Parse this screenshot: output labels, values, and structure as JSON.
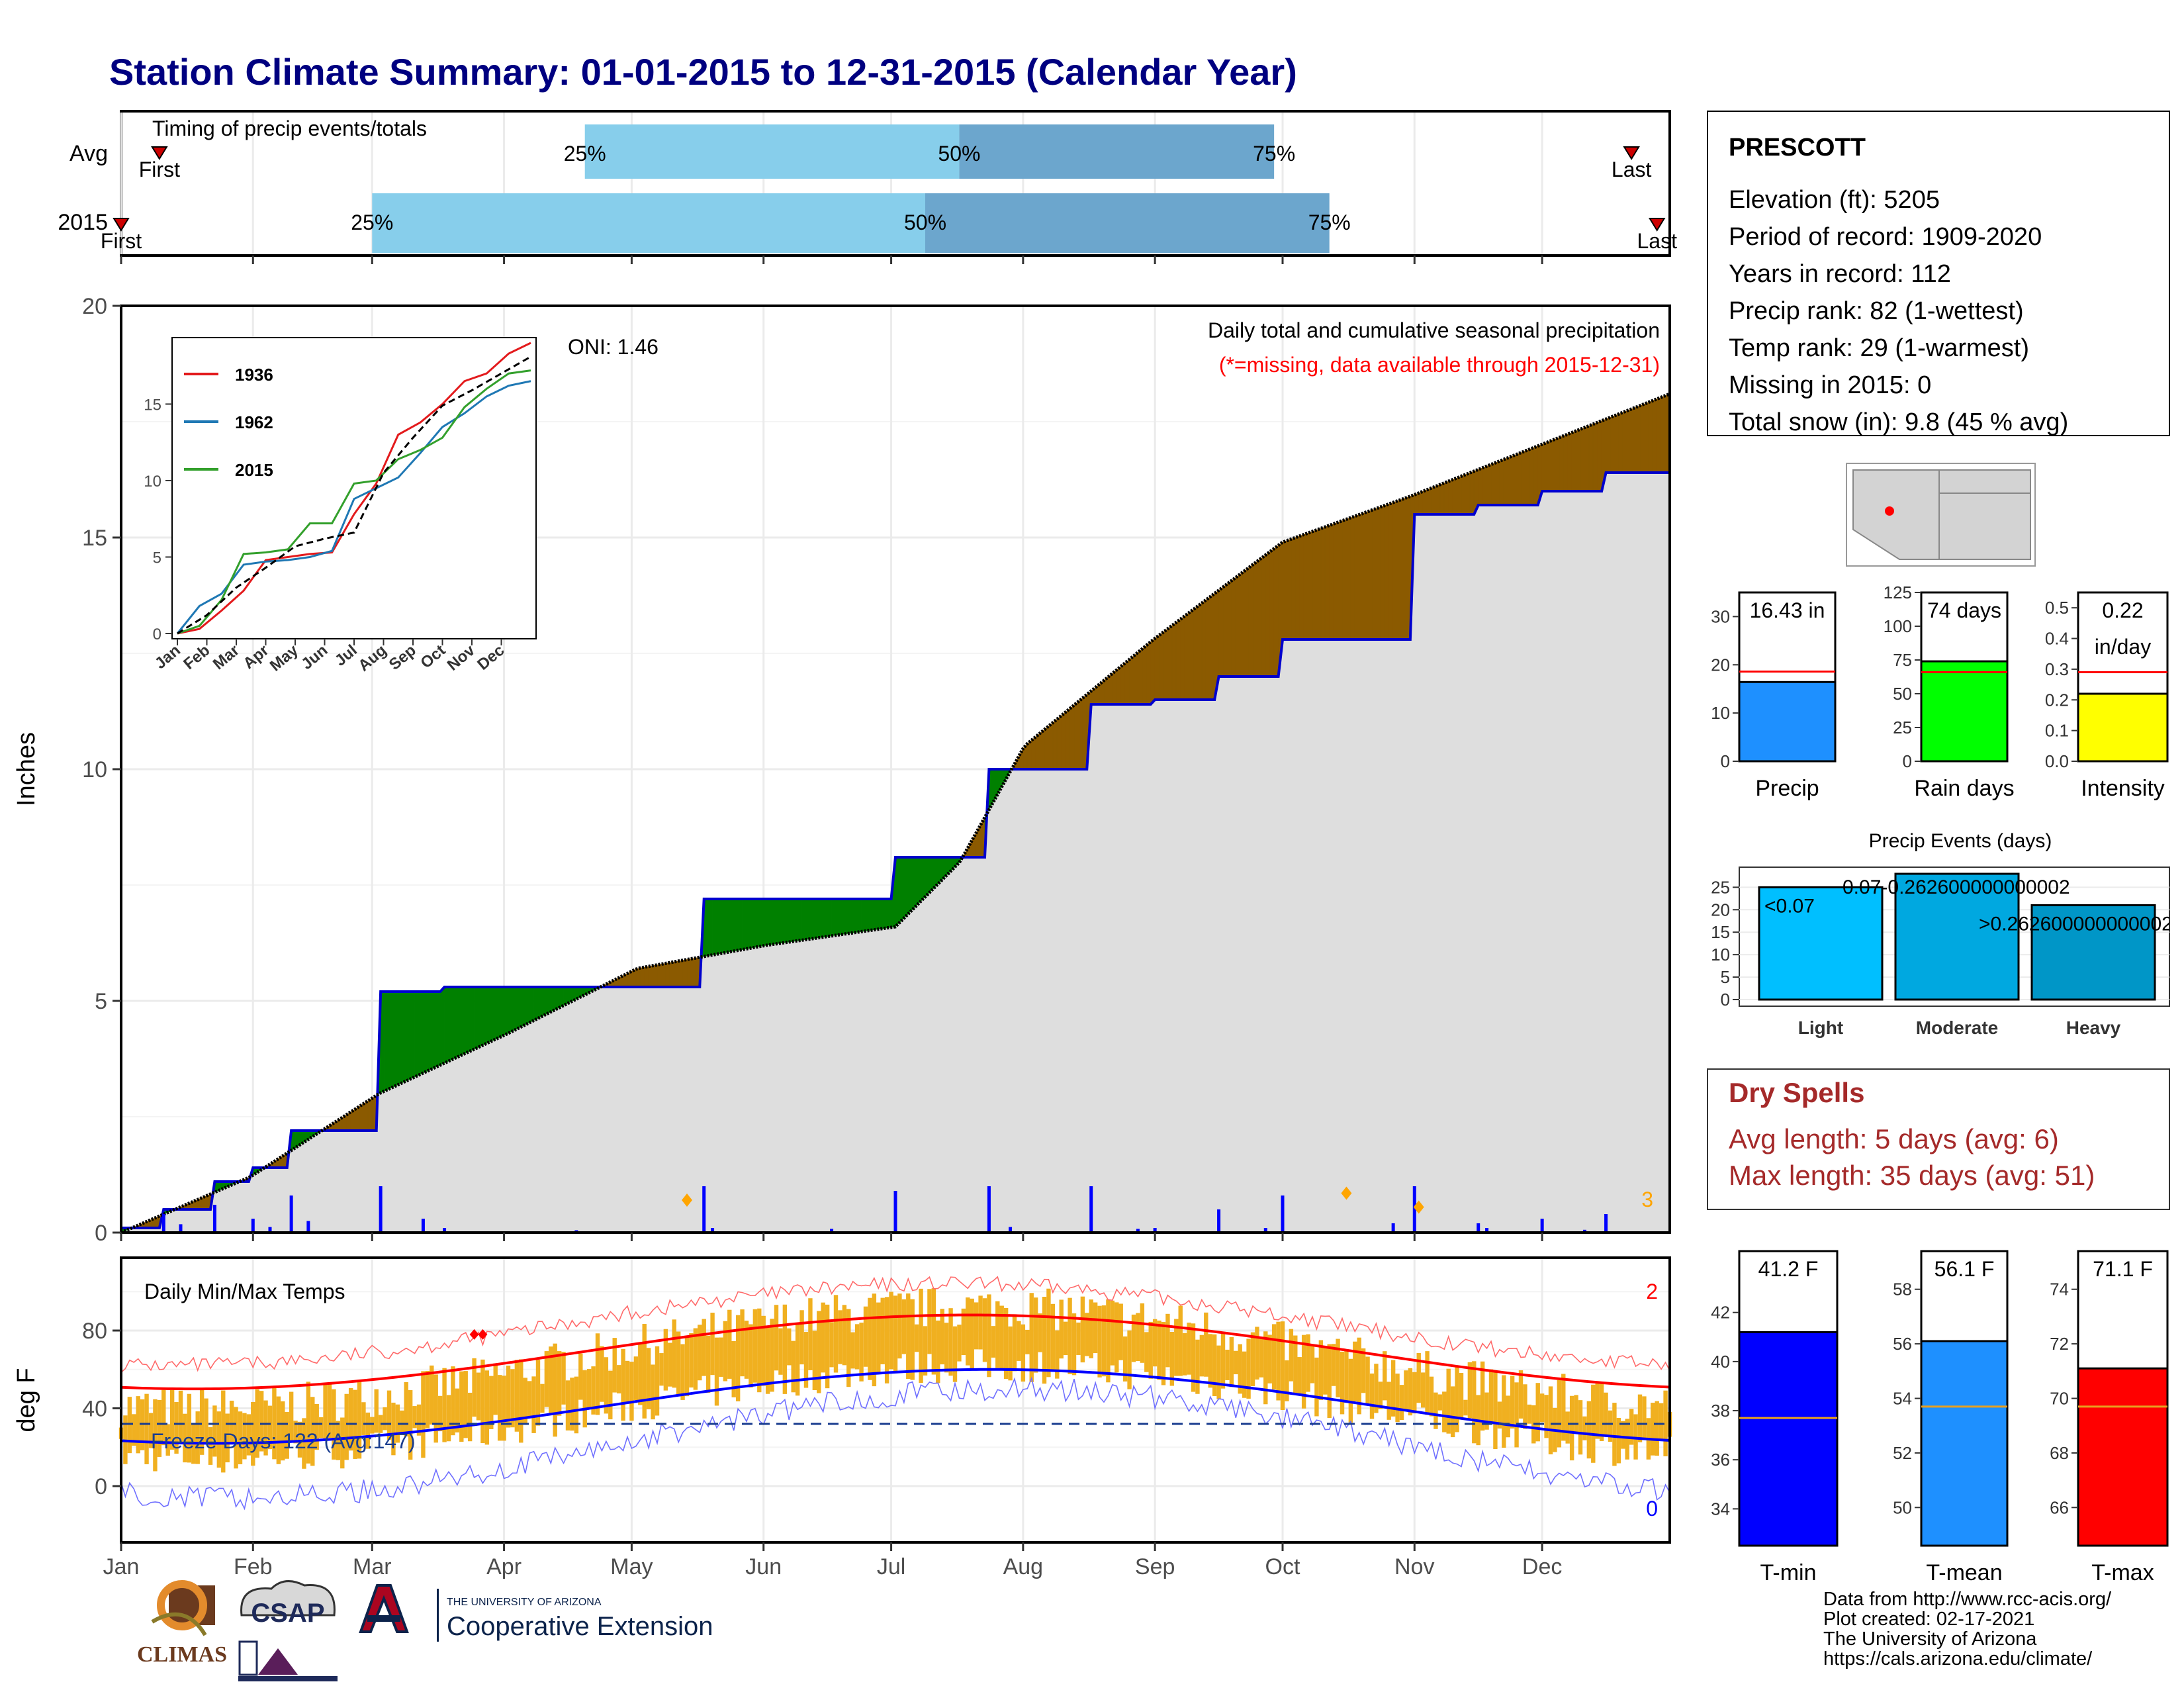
{
  "title": "Station Climate Summary: 01-01-2015 to 12-31-2015 (Calendar Year)",
  "timing_panel": {
    "label": "Timing of precip events/totals",
    "rows": [
      {
        "name": "Avg",
        "first_label": "First",
        "last_label": "Last",
        "first_day": 10,
        "last_day": 356,
        "p25_day": 110,
        "p50_day": 198,
        "p75_day": 272
      },
      {
        "name": "2015",
        "first_label": "First",
        "last_label": "Last",
        "first_day": 1,
        "last_day": 362,
        "p25_day": 60,
        "p50_day": 190,
        "p75_day": 285
      }
    ],
    "pct_labels": [
      "25%",
      "50%",
      "75%"
    ]
  },
  "station": {
    "name": "PRESCOTT",
    "lines": [
      "Elevation (ft): 5205",
      "Period of record: 1909-2020",
      "Years in record: 112",
      "Precip rank: 82 (1-wettest)",
      "Temp rank: 29 (1-warmest)",
      "Missing in 2015: 0",
      "Total snow (in): 9.8 (45 % avg)"
    ]
  },
  "precip_panel": {
    "ylabel": "Inches",
    "yticks": [
      0,
      5,
      10,
      15,
      20
    ],
    "annotation_right_1": "Daily total and cumulative seasonal precipitation",
    "annotation_right_2": "(*=missing, data available through 2015-12-31)",
    "oni": "ONI: 1.46",
    "corner_count": "3",
    "colors": {
      "above": "#008000",
      "below": "#8B5A00",
      "obs_line": "#0000CD",
      "bars": "#0000FF",
      "area": "#DEDEDE"
    }
  },
  "inset": {
    "legend": [
      "1936",
      "1962",
      "2015"
    ],
    "colors": [
      "#E31A1C",
      "#1F78B4",
      "#33A02C"
    ],
    "yticks": [
      0,
      5,
      10,
      15
    ],
    "xticks": [
      "Jan",
      "Feb",
      "Mar",
      "Apr",
      "May",
      "Jun",
      "Jul",
      "Aug",
      "Sep",
      "Oct",
      "Nov",
      "Dec"
    ]
  },
  "temp_panel": {
    "ylabel": "deg F",
    "label": "Daily Min/Max Temps",
    "freeze_label": "Freeze Days: 122 (Avg:147)",
    "yticks": [
      0,
      40,
      80
    ],
    "count_high": "2",
    "count_low": "0"
  },
  "months": [
    "Jan",
    "Feb",
    "Mar",
    "Apr",
    "May",
    "Jun",
    "Jul",
    "Aug",
    "Sep",
    "Oct",
    "Nov",
    "Dec"
  ],
  "chart_data": [
    {
      "type": "line",
      "title": "Daily total and cumulative seasonal precipitation",
      "ylabel": "Inches",
      "ylim": [
        0,
        20
      ],
      "series": [
        {
          "name": "2015 cumulative",
          "x_month": [
            1,
            1.3,
            1.7,
            2.0,
            2.3,
            3.0,
            3.5,
            4.5,
            5.5,
            6.5,
            7.0,
            7.7,
            8.0,
            8.5,
            9.0,
            9.5,
            10.0,
            11.0,
            11.5,
            12.0,
            12.5,
            13.0
          ],
          "values": [
            0.1,
            0.5,
            1.1,
            1.4,
            2.2,
            5.2,
            5.3,
            5.3,
            7.2,
            7.2,
            8.1,
            10.0,
            10.0,
            11.4,
            11.5,
            12.0,
            12.8,
            15.5,
            15.7,
            16.0,
            16.4,
            16.4
          ]
        },
        {
          "name": "Average cumulative",
          "x_month": [
            1,
            2,
            3,
            4,
            5,
            6,
            7,
            7.5,
            8,
            9,
            10,
            11,
            12,
            13
          ],
          "values": [
            0,
            1.2,
            3.0,
            4.3,
            5.7,
            6.2,
            6.6,
            8.0,
            10.5,
            12.8,
            14.9,
            15.9,
            17.0,
            18.1
          ]
        }
      ]
    },
    {
      "type": "bar",
      "title": "Precip",
      "categories": [
        "Precip"
      ],
      "values": [
        16.43
      ],
      "value_label": "16.43 in",
      "average": 18.6,
      "ylim": [
        0,
        35
      ],
      "yticks": [
        0,
        10,
        20,
        30
      ],
      "color": "#1E90FF"
    },
    {
      "type": "bar",
      "title": "Rain days",
      "categories": [
        "Rain days"
      ],
      "values": [
        74
      ],
      "value_label": "74 days",
      "average": 66,
      "ylim": [
        0,
        125
      ],
      "yticks": [
        0,
        25,
        50,
        75,
        100,
        125
      ],
      "color": "#00FF00"
    },
    {
      "type": "bar",
      "title": "Intensity",
      "categories": [
        "Intensity"
      ],
      "values": [
        0.22
      ],
      "value_label_1": "0.22",
      "value_label_2": "in/day",
      "average": 0.29,
      "ylim": [
        0,
        0.55
      ],
      "yticks": [
        0.0,
        0.1,
        0.2,
        0.3,
        0.4,
        0.5
      ],
      "yticklabels": [
        "0.0",
        "0.1",
        "0.2",
        "0.3",
        "0.4",
        "0.5"
      ],
      "color": "#FFFF00"
    },
    {
      "type": "bar",
      "title": "Precip Events (days)",
      "categories": [
        "Light",
        "Moderate",
        "Heavy"
      ],
      "values": [
        25,
        28,
        21
      ],
      "bar_labels": [
        "<0.07",
        "0.07-0.262600000000002",
        ">0.262600000000002"
      ],
      "ylim": [
        0,
        28
      ],
      "yticks": [
        0,
        5,
        10,
        15,
        20,
        25
      ],
      "colors": [
        "#00BFFF",
        "#00A8E0",
        "#0096C7"
      ]
    },
    {
      "type": "bar",
      "title": "T-min",
      "categories": [
        "T-min"
      ],
      "values": [
        41.2
      ],
      "value_label": "41.2 F",
      "average": 37.7,
      "ylim": [
        32.5,
        44.5
      ],
      "yticks": [
        34,
        36,
        38,
        40,
        42
      ],
      "color": "#0000FF"
    },
    {
      "type": "bar",
      "title": "T-mean",
      "categories": [
        "T-mean"
      ],
      "values": [
        56.1
      ],
      "value_label": "56.1 F",
      "average": 53.7,
      "ylim": [
        48.6,
        59.4
      ],
      "yticks": [
        50,
        52,
        54,
        56,
        58
      ],
      "color": "#1E90FF"
    },
    {
      "type": "bar",
      "title": "T-max",
      "categories": [
        "T-max"
      ],
      "values": [
        71.1
      ],
      "value_label": "71.1 F",
      "average": 69.7,
      "ylim": [
        64.6,
        75.4
      ],
      "yticks": [
        66,
        68,
        70,
        72,
        74
      ],
      "color": "#FF0000"
    }
  ],
  "dry_spells": {
    "title": "Dry Spells",
    "line1": "Avg length: 5 days (avg: 6)",
    "line2": "Max length: 35 days (avg: 51)"
  },
  "footer": {
    "lines": [
      "Data from http://www.rcc-acis.org/",
      "Plot created: 02-17-2021",
      "The University of Arizona",
      "https://cals.arizona.edu/climate/"
    ],
    "logo_climas": "CLIMAS",
    "logo_csap": "CSAP",
    "logo_ua_line1": "THE UNIVERSITY OF ARIZONA",
    "logo_ua_line2": "Cooperative Extension"
  }
}
